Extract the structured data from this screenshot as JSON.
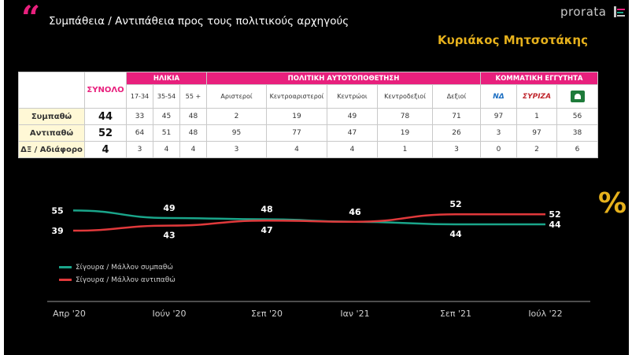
{
  "header": {
    "quote_mark": "“",
    "title": "Συμπάθεια / Αντιπάθεια προς τους πολιτικούς αρχηγούς",
    "brand": "prorata",
    "subject": "Κυριάκος Μητσοτάκης"
  },
  "table": {
    "total_header": "ΣΥΝΟΛΟ",
    "groups": [
      "ΗΛΙΚΙΑ",
      "ΠΟΛΙΤΙΚΗ ΑΥΤΟΤΟΠΟΘΕΤΗΣΗ",
      "ΚΟΜΜΑΤΙΚΗ ΕΓΓΥΤΗΤΑ"
    ],
    "age_cols": [
      "17-34",
      "35-54",
      "55 +"
    ],
    "ideology_cols": [
      "Αριστεροί",
      "Κεντροαριστεροί",
      "Κεντρώοι",
      "Κεντροδεξιοί",
      "Δεξιοί"
    ],
    "party_logos": [
      "ΝΔ",
      "ΣΥΡΙΖΑ",
      "ΠΑΣΟΚ"
    ],
    "rows": [
      {
        "label": "Συμπαθώ",
        "total": "44",
        "cells": [
          "33",
          "45",
          "48",
          "2",
          "19",
          "49",
          "78",
          "71",
          "97",
          "1",
          "56"
        ]
      },
      {
        "label": "Αντιπαθώ",
        "total": "52",
        "cells": [
          "64",
          "51",
          "48",
          "95",
          "77",
          "47",
          "19",
          "26",
          "3",
          "97",
          "38"
        ]
      },
      {
        "label": "ΔΞ / Αδιάφορο",
        "total": "4",
        "cells": [
          "3",
          "4",
          "4",
          "3",
          "4",
          "4",
          "1",
          "3",
          "0",
          "2",
          "6"
        ]
      }
    ]
  },
  "percent_symbol": "%",
  "chart_data": {
    "type": "line",
    "categories": [
      "Απρ '20",
      "Ιούν '20",
      "Σεπ '20",
      "Ιαν '21",
      "Σεπ '21",
      "Ιούλ '22"
    ],
    "series": [
      {
        "name": "Σίγουρα / Μάλλον συμπαθώ",
        "color": "#1aa58a",
        "values": [
          55,
          49,
          48,
          46,
          44,
          44
        ]
      },
      {
        "name": "Σίγουρα / Μάλλον αντιπαθώ",
        "color": "#e0393b",
        "values": [
          39,
          43,
          47,
          46,
          52,
          52
        ]
      }
    ],
    "title": "",
    "xlabel": "",
    "ylabel": "",
    "legend_position": "bottom-left",
    "grid": false
  }
}
